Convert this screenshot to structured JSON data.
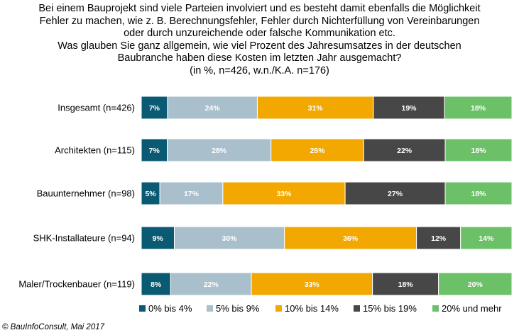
{
  "chart_data": {
    "type": "bar",
    "orientation": "horizontal",
    "stacked": true,
    "normalized": true,
    "title_lines": [
      "Bei einem Bauprojekt sind viele Parteien involviert und es besteht damit ebenfalls die Möglichkeit",
      "Fehler zu machen, wie z. B. Berechnungsfehler, Fehler durch Nichterfüllung von Vereinbarungen",
      "oder durch unzureichende oder falsche Kommunikation etc.",
      "Was glauben Sie ganz allgemein, wie viel Prozent des Jahresumsatzes in der deutschen",
      "Baubranche haben diese Kosten im letzten Jahr ausgemacht?",
      "(in %, n=426, w.n./K.A. n=176)"
    ],
    "categories": [
      "Insgesamt (n=426)",
      "Architekten (n=115)",
      "Bauunternehmer (n=98)",
      "SHK-Installateure (n=94)",
      "Maler/Trockenbauer (n=119)"
    ],
    "series": [
      {
        "name": "0% bis 4%",
        "color": "#0b5a73",
        "values": [
          7,
          7,
          5,
          9,
          8
        ],
        "labels": [
          "7%",
          "7%",
          "5%",
          "9%",
          "8%"
        ]
      },
      {
        "name": "5% bis 9%",
        "color": "#a9bfcb",
        "values": [
          24,
          28,
          17,
          30,
          22
        ],
        "labels": [
          "24%",
          "28%",
          "17%",
          "30%",
          "22%"
        ]
      },
      {
        "name": "10% bis 14%",
        "color": "#f2a800",
        "values": [
          31,
          25,
          33,
          36,
          33
        ],
        "labels": [
          "31%",
          "25%",
          "33%",
          "36%",
          "33%"
        ]
      },
      {
        "name": "15% bis 19%",
        "color": "#474747",
        "values": [
          19,
          22,
          27,
          12,
          18
        ],
        "labels": [
          "19%",
          "22%",
          "27%",
          "12%",
          "18%"
        ]
      },
      {
        "name": "20% und mehr",
        "color": "#6cc068",
        "values": [
          18,
          18,
          18,
          14,
          20
        ],
        "labels": [
          "18%",
          "18%",
          "18%",
          "14%",
          "20%"
        ]
      }
    ],
    "legend_position": "bottom",
    "grid": false,
    "source": "© BauInfoConsult, Mai 2017"
  }
}
